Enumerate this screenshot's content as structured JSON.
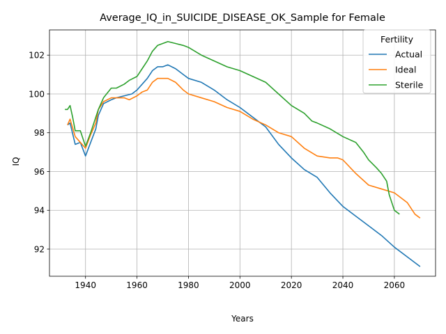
{
  "chart_data": {
    "type": "line",
    "title": "Average_IQ_in_SUICIDE_DISEASE_OK_Sample for Female",
    "xlabel": "Years",
    "ylabel": "IQ",
    "xlim": [
      1926,
      2076
    ],
    "ylim": [
      90.6,
      103.3
    ],
    "xticks": [
      1940,
      1960,
      1980,
      2000,
      2020,
      2040,
      2060
    ],
    "yticks": [
      92,
      94,
      96,
      98,
      100,
      102
    ],
    "grid": true,
    "legend": {
      "title": "Fertility",
      "position": "top-right"
    },
    "colors": {
      "Actual": "#1f77b4",
      "Ideal": "#ff7f0e",
      "Sterile": "#2ca02c"
    },
    "series": [
      {
        "name": "Actual",
        "x": [
          1933,
          1934,
          1936,
          1938,
          1940,
          1942,
          1944,
          1945,
          1947,
          1950,
          1952,
          1955,
          1958,
          1960,
          1962,
          1964,
          1966,
          1968,
          1970,
          1972,
          1975,
          1978,
          1980,
          1985,
          1990,
          1995,
          2000,
          2005,
          2010,
          2015,
          2020,
          2025,
          2030,
          2035,
          2040,
          2045,
          2050,
          2055,
          2060,
          2065,
          2068,
          2070
        ],
        "values": [
          98.4,
          98.5,
          97.4,
          97.5,
          96.8,
          97.5,
          98.2,
          98.9,
          99.5,
          99.7,
          99.8,
          99.9,
          100.0,
          100.2,
          100.5,
          100.8,
          101.2,
          101.4,
          101.4,
          101.5,
          101.3,
          101.0,
          100.8,
          100.6,
          100.2,
          99.7,
          99.3,
          98.8,
          98.3,
          97.4,
          96.7,
          96.1,
          95.7,
          94.9,
          94.2,
          93.7,
          93.2,
          92.7,
          92.1,
          91.6,
          91.3,
          91.1
        ]
      },
      {
        "name": "Ideal",
        "x": [
          1933,
          1934,
          1936,
          1938,
          1940,
          1942,
          1944,
          1945,
          1947,
          1950,
          1952,
          1955,
          1957,
          1960,
          1962,
          1964,
          1966,
          1968,
          1970,
          1972,
          1975,
          1978,
          1980,
          1985,
          1990,
          1995,
          2000,
          2005,
          2010,
          2015,
          2020,
          2025,
          2030,
          2035,
          2038,
          2040,
          2045,
          2050,
          2055,
          2060,
          2065,
          2068,
          2070
        ],
        "values": [
          98.4,
          98.7,
          97.8,
          97.5,
          97.2,
          97.9,
          98.5,
          99.2,
          99.6,
          99.8,
          99.8,
          99.8,
          99.7,
          99.9,
          100.1,
          100.2,
          100.6,
          100.8,
          100.8,
          100.8,
          100.6,
          100.2,
          100.0,
          99.8,
          99.6,
          99.3,
          99.1,
          98.7,
          98.4,
          98.0,
          97.8,
          97.2,
          96.8,
          96.7,
          96.7,
          96.6,
          95.9,
          95.3,
          95.1,
          94.9,
          94.4,
          93.8,
          93.6
        ]
      },
      {
        "name": "Sterile",
        "x": [
          1932,
          1933,
          1934,
          1935,
          1936,
          1938,
          1940,
          1942,
          1944,
          1945,
          1947,
          1950,
          1952,
          1955,
          1957,
          1960,
          1962,
          1964,
          1966,
          1968,
          1970,
          1972,
          1975,
          1978,
          1980,
          1985,
          1990,
          1995,
          2000,
          2005,
          2010,
          2015,
          2020,
          2025,
          2028,
          2030,
          2035,
          2040,
          2045,
          2048,
          2050,
          2053,
          2055,
          2057,
          2058,
          2060,
          2062
        ],
        "values": [
          99.2,
          99.2,
          99.4,
          98.8,
          98.1,
          98.1,
          97.3,
          98.0,
          98.8,
          99.2,
          99.8,
          100.3,
          100.3,
          100.5,
          100.7,
          100.9,
          101.3,
          101.7,
          102.2,
          102.5,
          102.6,
          102.7,
          102.6,
          102.5,
          102.4,
          102.0,
          101.7,
          101.4,
          101.2,
          100.9,
          100.6,
          100.0,
          99.4,
          99.0,
          98.6,
          98.5,
          98.2,
          97.8,
          97.5,
          97.0,
          96.6,
          96.2,
          95.9,
          95.5,
          94.8,
          94.0,
          93.8
        ]
      }
    ]
  }
}
